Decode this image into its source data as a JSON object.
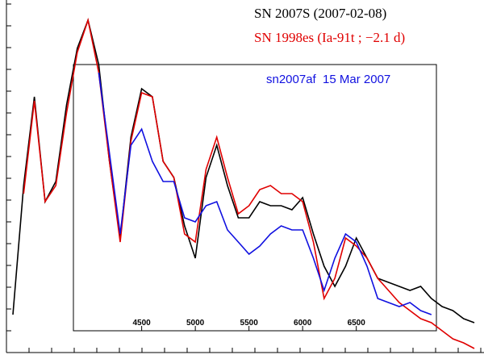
{
  "chart_data": {
    "type": "line",
    "x": [
      3300,
      3400,
      3500,
      3600,
      3700,
      3800,
      3900,
      4000,
      4100,
      4200,
      4300,
      4400,
      4500,
      4600,
      4700,
      4800,
      4900,
      5000,
      5100,
      5200,
      5300,
      5400,
      5500,
      5600,
      5700,
      5800,
      5900,
      6000,
      6100,
      6200,
      6300,
      6400,
      6500,
      6600,
      6700,
      6800,
      6900,
      7000,
      7100,
      7200,
      7300,
      7400,
      7500,
      7600
    ],
    "series": [
      {
        "name": "SN 2007S (2007-02-08)",
        "color": "#000000",
        "values": [
          0.5,
          2.1,
          3.2,
          1.9,
          2.15,
          3.1,
          3.8,
          4.15,
          3.6,
          2.4,
          1.45,
          2.7,
          3.3,
          3.2,
          2.4,
          2.2,
          1.6,
          1.2,
          2.2,
          2.6,
          2.1,
          1.7,
          1.7,
          1.9,
          1.85,
          1.85,
          1.8,
          1.95,
          1.5,
          1.1,
          0.85,
          1.1,
          1.45,
          1.2,
          0.95,
          0.9,
          0.85,
          0.8,
          0.85,
          0.7,
          0.6,
          0.55,
          0.45,
          0.4
        ]
      },
      {
        "name": "SN 1998es (Ia-91t ; −2.1 d)",
        "color": "#e00000",
        "values": [
          null,
          2.0,
          3.15,
          1.9,
          2.1,
          3.0,
          3.75,
          4.15,
          3.5,
          2.4,
          1.4,
          2.65,
          3.25,
          3.2,
          2.4,
          2.2,
          1.5,
          1.4,
          2.3,
          2.7,
          2.2,
          1.75,
          1.85,
          2.05,
          2.1,
          2.0,
          2.0,
          1.9,
          1.4,
          0.7,
          0.95,
          1.45,
          1.35,
          1.2,
          0.95,
          0.8,
          0.65,
          0.55,
          0.45,
          0.4,
          0.3,
          0.2,
          0.15,
          0.08
        ]
      },
      {
        "name": "sn2007af  15 Mar 2007",
        "color": "#1010e0",
        "values": [
          null,
          null,
          null,
          null,
          null,
          null,
          null,
          null,
          3.5,
          2.5,
          1.5,
          2.6,
          2.8,
          2.4,
          2.15,
          2.15,
          1.7,
          1.65,
          1.85,
          1.9,
          1.55,
          1.4,
          1.25,
          1.35,
          1.5,
          1.6,
          1.55,
          1.55,
          1.2,
          0.8,
          1.2,
          1.5,
          1.4,
          1.1,
          0.7,
          0.65,
          0.6,
          0.65,
          0.55,
          0.5,
          null,
          null,
          null,
          null
        ]
      }
    ],
    "xlim": [
      3240,
      7690
    ],
    "ylim": [
      0,
      4.4
    ],
    "xticks": [
      4500,
      5000,
      5500,
      6000,
      6500
    ]
  }
}
